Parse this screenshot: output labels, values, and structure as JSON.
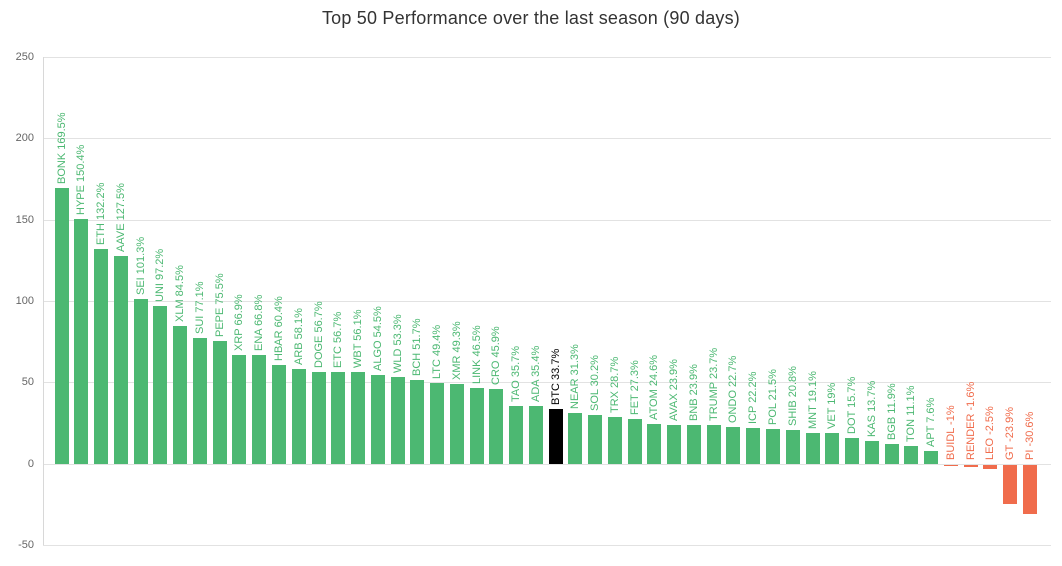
{
  "chart_data": {
    "type": "bar",
    "title": "Top 50 Performance over the last season (90 days)",
    "xlabel": "",
    "ylabel": "",
    "ylim": [
      -50,
      250
    ],
    "yticks": [
      250,
      200,
      150,
      100,
      50,
      0,
      -50
    ],
    "grid": true,
    "legend": false,
    "bar_label_position": "above-bar-rotated-90",
    "series": [
      {
        "ticker": "BONK",
        "value": 169.5,
        "label": "BONK 169.5%"
      },
      {
        "ticker": "HYPE",
        "value": 150.4,
        "label": "HYPE 150.4%"
      },
      {
        "ticker": "ETH",
        "value": 132.2,
        "label": "ETH 132.2%"
      },
      {
        "ticker": "AAVE",
        "value": 127.5,
        "label": "AAVE 127.5%"
      },
      {
        "ticker": "SEI",
        "value": 101.3,
        "label": "SEI 101.3%"
      },
      {
        "ticker": "UNI",
        "value": 97.2,
        "label": "UNI 97.2%"
      },
      {
        "ticker": "XLM",
        "value": 84.5,
        "label": "XLM 84.5%"
      },
      {
        "ticker": "SUI",
        "value": 77.1,
        "label": "SUI 77.1%"
      },
      {
        "ticker": "PEPE",
        "value": 75.5,
        "label": "PEPE 75.5%"
      },
      {
        "ticker": "XRP",
        "value": 66.9,
        "label": "XRP 66.9%"
      },
      {
        "ticker": "ENA",
        "value": 66.8,
        "label": "ENA 66.8%"
      },
      {
        "ticker": "HBAR",
        "value": 60.4,
        "label": "HBAR 60.4%"
      },
      {
        "ticker": "ARB",
        "value": 58.1,
        "label": "ARB 58.1%"
      },
      {
        "ticker": "DOGE",
        "value": 56.7,
        "label": "DOGE 56.7%"
      },
      {
        "ticker": "ETC",
        "value": 56.7,
        "label": "ETC 56.7%"
      },
      {
        "ticker": "WBT",
        "value": 56.1,
        "label": "WBT 56.1%"
      },
      {
        "ticker": "ALGO",
        "value": 54.5,
        "label": "ALGO 54.5%"
      },
      {
        "ticker": "WLD",
        "value": 53.3,
        "label": "WLD 53.3%"
      },
      {
        "ticker": "BCH",
        "value": 51.7,
        "label": "BCH 51.7%"
      },
      {
        "ticker": "LTC",
        "value": 49.4,
        "label": "LTC 49.4%"
      },
      {
        "ticker": "XMR",
        "value": 49.3,
        "label": "XMR 49.3%"
      },
      {
        "ticker": "LINK",
        "value": 46.5,
        "label": "LINK 46.5%"
      },
      {
        "ticker": "CRO",
        "value": 45.9,
        "label": "CRO 45.9%"
      },
      {
        "ticker": "TAO",
        "value": 35.7,
        "label": "TAO 35.7%"
      },
      {
        "ticker": "ADA",
        "value": 35.4,
        "label": "ADA 35.4%"
      },
      {
        "ticker": "BTC",
        "value": 33.7,
        "label": "BTC 33.7%",
        "highlight": true
      },
      {
        "ticker": "NEAR",
        "value": 31.3,
        "label": "NEAR 31.3%"
      },
      {
        "ticker": "SOL",
        "value": 30.2,
        "label": "SOL 30.2%"
      },
      {
        "ticker": "TRX",
        "value": 28.7,
        "label": "TRX 28.7%"
      },
      {
        "ticker": "FET",
        "value": 27.3,
        "label": "FET 27.3%"
      },
      {
        "ticker": "ATOM",
        "value": 24.6,
        "label": "ATOM 24.6%"
      },
      {
        "ticker": "AVAX",
        "value": 23.9,
        "label": "AVAX 23.9%"
      },
      {
        "ticker": "BNB",
        "value": 23.9,
        "label": "BNB 23.9%"
      },
      {
        "ticker": "TRUMP",
        "value": 23.7,
        "label": "TRUMP 23.7%"
      },
      {
        "ticker": "ONDO",
        "value": 22.7,
        "label": "ONDO 22.7%"
      },
      {
        "ticker": "ICP",
        "value": 22.2,
        "label": "ICP 22.2%"
      },
      {
        "ticker": "POL",
        "value": 21.5,
        "label": "POL 21.5%"
      },
      {
        "ticker": "SHIB",
        "value": 20.8,
        "label": "SHIB 20.8%"
      },
      {
        "ticker": "MNT",
        "value": 19.1,
        "label": "MNT 19.1%"
      },
      {
        "ticker": "VET",
        "value": 19,
        "label": "VET 19%"
      },
      {
        "ticker": "DOT",
        "value": 15.7,
        "label": "DOT 15.7%"
      },
      {
        "ticker": "KAS",
        "value": 13.7,
        "label": "KAS 13.7%"
      },
      {
        "ticker": "BGB",
        "value": 11.9,
        "label": "BGB 11.9%"
      },
      {
        "ticker": "TON",
        "value": 11.1,
        "label": "TON 11.1%"
      },
      {
        "ticker": "APT",
        "value": 7.6,
        "label": "APT 7.6%"
      },
      {
        "ticker": "BUIDL",
        "value": -1,
        "label": "BUIDL -1%"
      },
      {
        "ticker": "RENDER",
        "value": -1.6,
        "label": "RENDER -1.6%"
      },
      {
        "ticker": "LEO",
        "value": -2.5,
        "label": "LEO -2.5%"
      },
      {
        "ticker": "GT",
        "value": -23.9,
        "label": "GT -23.9%"
      },
      {
        "ticker": "PI",
        "value": -30.6,
        "label": "PI -30.6%"
      }
    ],
    "colors": {
      "positive": "#4cb872",
      "negative": "#f06c4c",
      "highlight": "#000000",
      "grid": "#e2e2e2",
      "axis": "#d8d8d8",
      "tick_label": "#666666",
      "title": "#333333",
      "background": "#ffffff"
    }
  }
}
